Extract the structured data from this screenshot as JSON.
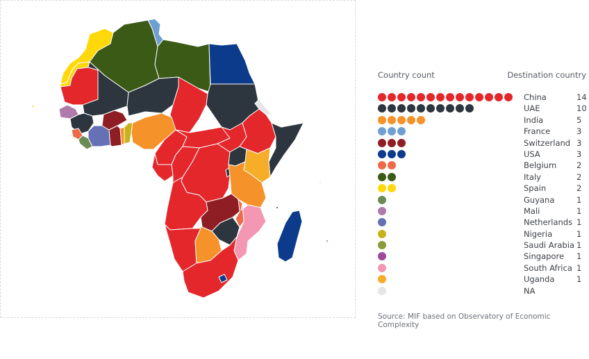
{
  "legend": {
    "header_left": "Country count",
    "header_right": "Destination country",
    "rows": [
      {
        "country": "China",
        "count": "14",
        "dots": 14,
        "color": "#e3272b"
      },
      {
        "country": "UAE",
        "count": "10",
        "dots": 10,
        "color": "#2d363e"
      },
      {
        "country": "India",
        "count": "5",
        "dots": 5,
        "color": "#f5922a"
      },
      {
        "country": "France",
        "count": "3",
        "dots": 3,
        "color": "#6e9fd0"
      },
      {
        "country": "Switzerland",
        "count": "3",
        "dots": 3,
        "color": "#8e1e24"
      },
      {
        "country": "USA",
        "count": "3",
        "dots": 3,
        "color": "#0b3b8a"
      },
      {
        "country": "Belgium",
        "count": "2",
        "dots": 2,
        "color": "#ee6a49"
      },
      {
        "country": "Italy",
        "count": "2",
        "dots": 2,
        "color": "#3a5a16"
      },
      {
        "country": "Spain",
        "count": "2",
        "dots": 2,
        "color": "#ffd80b"
      },
      {
        "country": "Guyana",
        "count": "1",
        "dots": 1,
        "color": "#6b8b55"
      },
      {
        "country": "Mali",
        "count": "1",
        "dots": 1,
        "color": "#b07aaa"
      },
      {
        "country": "Netherlands",
        "count": "1",
        "dots": 1,
        "color": "#6570b5"
      },
      {
        "country": "Nigeria",
        "count": "1",
        "dots": 1,
        "color": "#c8b21c"
      },
      {
        "country": "Saudi Arabia",
        "count": "1",
        "dots": 1,
        "color": "#8c9a3a"
      },
      {
        "country": "Singapore",
        "count": "1",
        "dots": 1,
        "color": "#9b4b9b"
      },
      {
        "country": "South Africa",
        "count": "1",
        "dots": 1,
        "color": "#f497b2"
      },
      {
        "country": "Uganda",
        "count": "1",
        "dots": 1,
        "color": "#f6ad28"
      },
      {
        "country": "NA",
        "count": "",
        "dots": 1,
        "color": "#e6e6e6"
      }
    ]
  },
  "source": "Source: MIF based on Observatory of Economic Complexity",
  "map": {
    "colors": {
      "china": "#e3272b",
      "uae": "#2d363e",
      "india": "#f5922a",
      "france": "#6e9fd0",
      "switzerland": "#8e1e24",
      "usa": "#0b3b8a",
      "belgium": "#ee6a49",
      "italy": "#3a5a16",
      "spain": "#ffd80b",
      "guyana": "#6b8b55",
      "mali": "#b07aaa",
      "netherlands": "#6570b5",
      "nigeria": "#c8b21c",
      "saudi_arabia": "#8c9a3a",
      "south_africa": "#f497b2",
      "uganda": "#f6ad28",
      "na": "#e6e6e6"
    }
  }
}
